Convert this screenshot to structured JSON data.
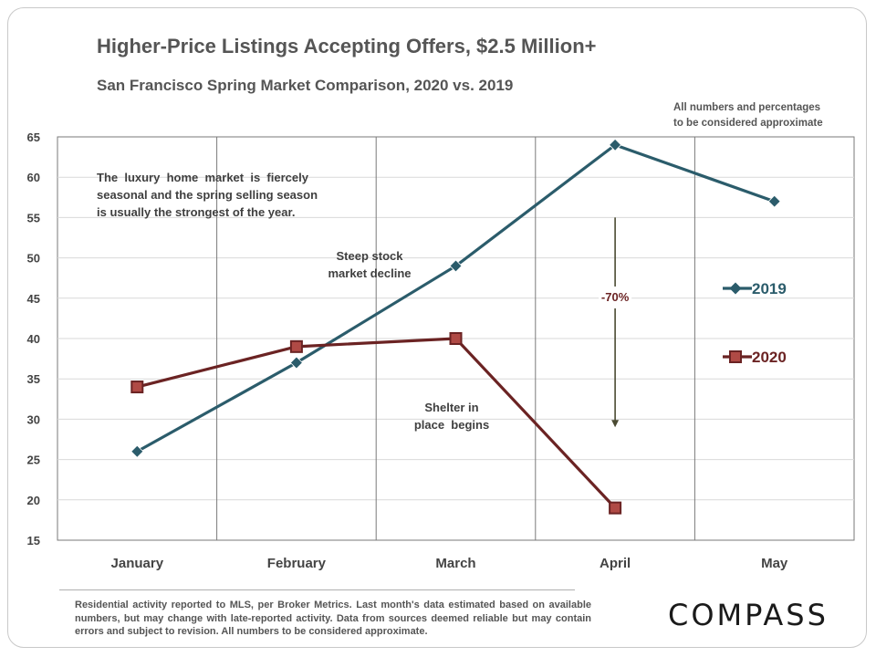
{
  "header": {
    "title": "Higher-Price Listings Accepting Offers, $2.5 Million+",
    "subtitle": "San Francisco Spring Market Comparison,  2020 vs. 2019",
    "note_line1": "All numbers and percentages",
    "note_line2": "to be considered approximate"
  },
  "annotations": {
    "luxury_line1": "The  luxury  home  market  is  fiercely",
    "luxury_line2": "seasonal and the spring selling season",
    "luxury_line3": "is usually the strongest of the year.",
    "stock_line1": "Steep stock",
    "stock_line2": "market decline",
    "shelter_line1": "Shelter in",
    "shelter_line2": "place  begins",
    "change_label": "-70%"
  },
  "footer": {
    "disclaimer": "Residential activity reported to MLS, per Broker Metrics. Last month's data estimated based on available numbers, but may change with late-reported activity. Data from sources deemed reliable but may contain errors and subject to revision. All numbers to be considered approximate.",
    "brand": "COMPASS"
  },
  "chart_data": {
    "type": "line",
    "categories": [
      "January",
      "February",
      "March",
      "April",
      "May"
    ],
    "series": [
      {
        "name": "2019",
        "values": [
          26,
          37,
          49,
          64,
          57
        ],
        "color": "#2b5c6b",
        "marker": "diamond"
      },
      {
        "name": "2020",
        "values": [
          34,
          39,
          40,
          19,
          null
        ],
        "color": "#6b2323",
        "marker": "square"
      }
    ],
    "ylim": [
      15,
      65
    ],
    "yticks": [
      15,
      20,
      25,
      30,
      35,
      40,
      45,
      50,
      55,
      60,
      65
    ],
    "grid": true,
    "legend": "right",
    "arrow": {
      "from": 55,
      "to": 29,
      "category": "April",
      "color": "#4a4a32"
    }
  }
}
